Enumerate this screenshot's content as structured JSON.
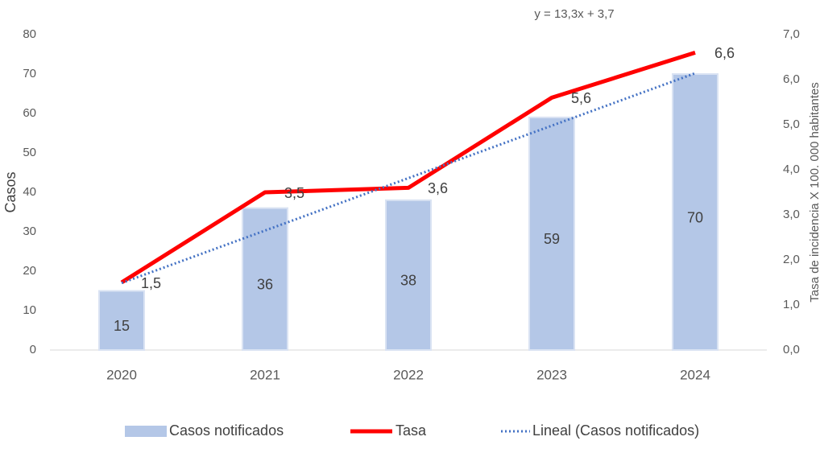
{
  "chart_data": {
    "type": "bar",
    "categories": [
      "2020",
      "2021",
      "2022",
      "2023",
      "2024"
    ],
    "ylabel": "Casos",
    "y2label": "Tasa de incidencia X 100. 000 habitantes",
    "annotation": "y = 13,3x + 3,7",
    "ylim": [
      0,
      80
    ],
    "yticks": [
      0,
      10,
      20,
      30,
      40,
      50,
      60,
      70,
      80
    ],
    "y2lim": [
      0,
      7
    ],
    "y2ticks": [
      {
        "value": 0,
        "label": "0,0"
      },
      {
        "value": 1,
        "label": "1,0"
      },
      {
        "value": 2,
        "label": "2,0"
      },
      {
        "value": 3,
        "label": "3,0"
      },
      {
        "value": 4,
        "label": "4,0"
      },
      {
        "value": 5,
        "label": "5,0"
      },
      {
        "value": 6,
        "label": "6,0"
      },
      {
        "value": 7,
        "label": "7,0"
      }
    ],
    "legend": "bottom",
    "series": [
      {
        "name": "Casos notificados",
        "type": "bar",
        "color": "#b4c7e7",
        "values": [
          15,
          36,
          38,
          59,
          70
        ]
      },
      {
        "name": "Tasa",
        "type": "line",
        "axis": "y2",
        "color": "#ff0000",
        "values": [
          1.5,
          3.5,
          3.6,
          5.6,
          6.6
        ],
        "value_labels": [
          "1,5",
          "3,5",
          "3,6",
          "5,6",
          "6,6"
        ]
      },
      {
        "name": "Lineal (Casos notificados)",
        "type": "trend",
        "color": "#4472c4",
        "values": [
          17,
          30.3,
          43.6,
          56.9,
          70.2
        ]
      }
    ]
  }
}
